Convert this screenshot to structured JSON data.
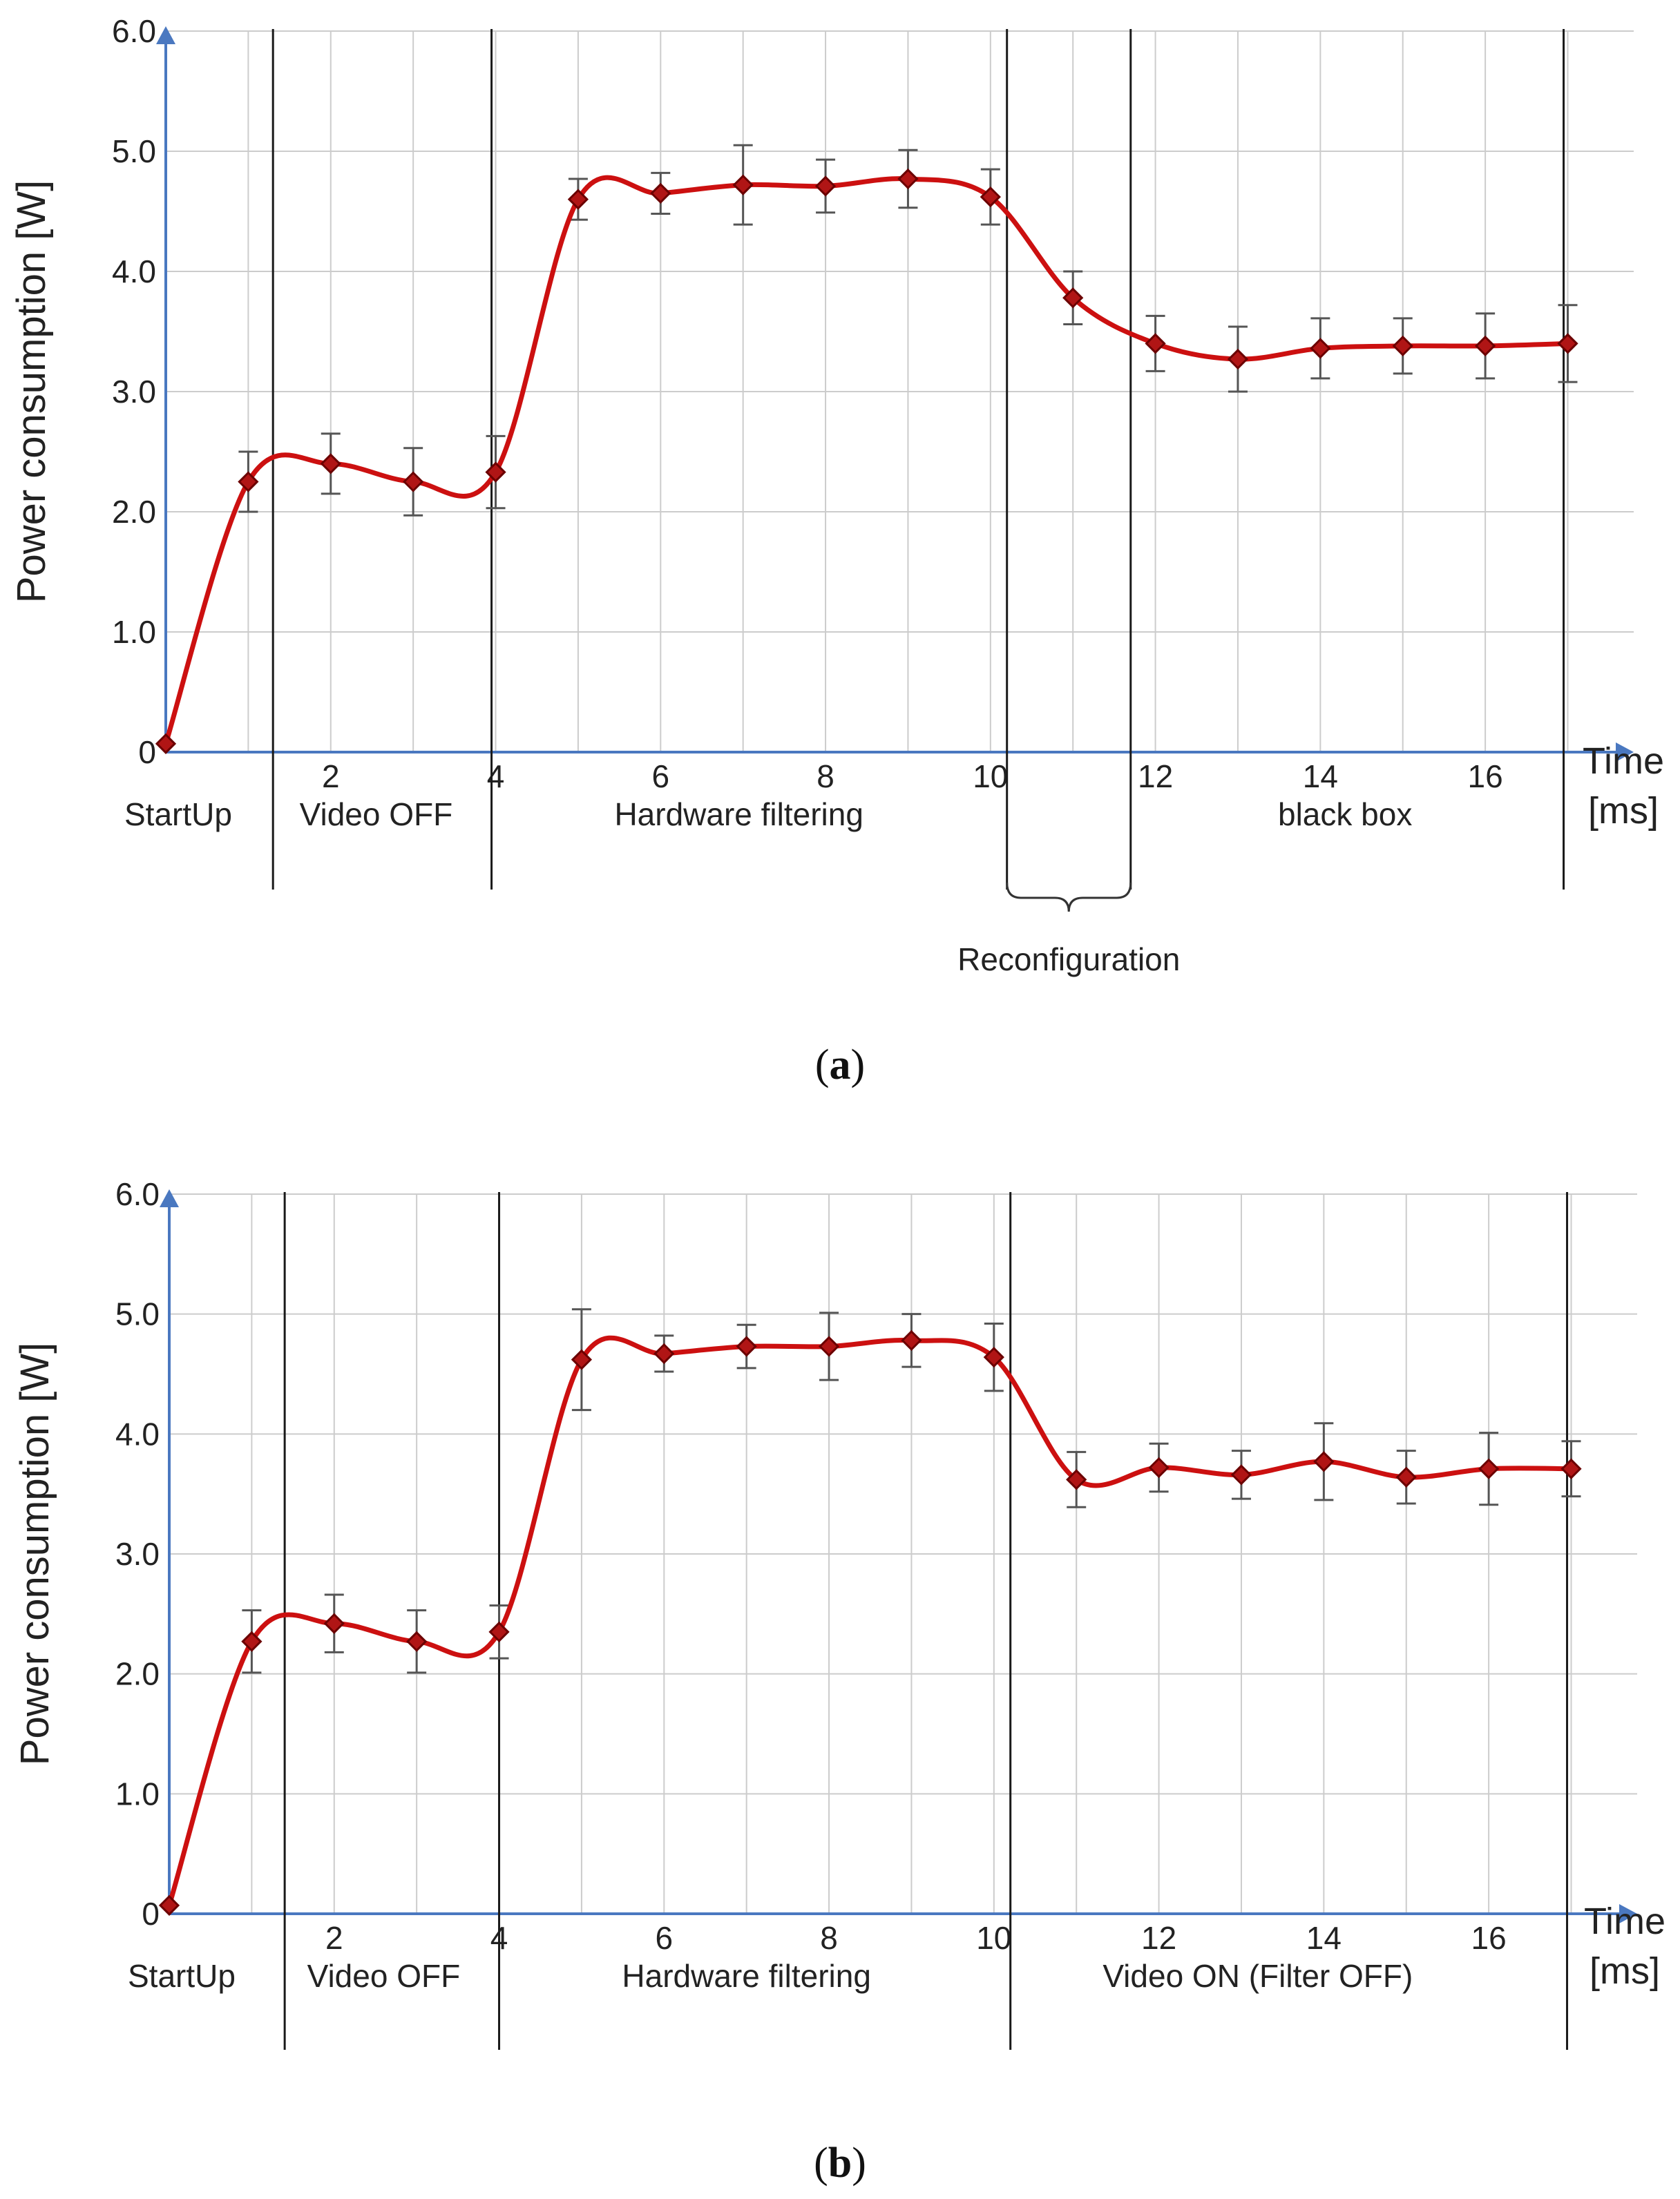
{
  "colors": {
    "axis": "#4a78c0",
    "grid": "#cccccc",
    "curve": "#cc1010",
    "marker": "#b01515",
    "divider": "#1a1a1a"
  },
  "chart_data": [
    {
      "id": "a",
      "type": "line",
      "caption": "a",
      "ylabel": "Power consumption [W]",
      "xlabel_line1": "Time",
      "xlabel_line2": "[ms]",
      "ylim": [
        0,
        6
      ],
      "xlim": [
        0,
        17.8
      ],
      "x_ticks": [
        {
          "value": 2,
          "label": "2"
        },
        {
          "value": 4,
          "label": "4"
        },
        {
          "value": 6,
          "label": "6"
        },
        {
          "value": 8,
          "label": "8"
        },
        {
          "value": 10,
          "label": "10"
        },
        {
          "value": 12,
          "label": "12"
        },
        {
          "value": 14,
          "label": "14"
        },
        {
          "value": 16,
          "label": "16"
        }
      ],
      "y_ticks": [
        {
          "value": 0,
          "label": "0"
        },
        {
          "value": 1,
          "label": "1.0"
        },
        {
          "value": 2,
          "label": "2.0"
        },
        {
          "value": 3,
          "label": "3.0"
        },
        {
          "value": 4,
          "label": "4.0"
        },
        {
          "value": 5,
          "label": "5.0"
        },
        {
          "value": 6,
          "label": "6.0"
        }
      ],
      "series": [
        {
          "name": "Power consumption",
          "x": [
            0,
            1,
            2,
            3,
            4,
            5,
            6,
            7,
            8,
            9,
            10,
            11,
            12,
            13,
            14,
            15,
            16,
            17
          ],
          "y": [
            0.07,
            2.25,
            2.4,
            2.25,
            2.33,
            4.6,
            4.65,
            4.72,
            4.71,
            4.77,
            4.62,
            3.78,
            3.4,
            3.27,
            3.36,
            3.38,
            3.38,
            3.4
          ],
          "err": [
            0,
            0.25,
            0.25,
            0.28,
            0.3,
            0.17,
            0.17,
            0.33,
            0.22,
            0.24,
            0.23,
            0.22,
            0.23,
            0.27,
            0.25,
            0.23,
            0.27,
            0.32
          ]
        }
      ],
      "dividers": [
        1.3,
        3.95,
        10.2,
        11.7,
        16.95
      ],
      "phases": [
        {
          "label": "StartUp",
          "x": 0.25
        },
        {
          "label": "Video OFF",
          "x": 2.55
        },
        {
          "label": "Hardware filtering",
          "x": 6.95
        },
        {
          "label": "black box",
          "x": 14.3
        }
      ],
      "annotation": {
        "label": "Reconfiguration",
        "from": 10.2,
        "to": 11.7
      }
    },
    {
      "id": "b",
      "type": "line",
      "caption": "b",
      "ylabel": "Power consumption [W]",
      "xlabel_line1": "Time",
      "xlabel_line2": "[ms]",
      "ylim": [
        0,
        6
      ],
      "xlim": [
        0,
        17.8
      ],
      "x_ticks": [
        {
          "value": 2,
          "label": "2"
        },
        {
          "value": 4,
          "label": "4"
        },
        {
          "value": 6,
          "label": "6"
        },
        {
          "value": 8,
          "label": "8"
        },
        {
          "value": 10,
          "label": "10"
        },
        {
          "value": 12,
          "label": "12"
        },
        {
          "value": 14,
          "label": "14"
        },
        {
          "value": 16,
          "label": "16"
        }
      ],
      "y_ticks": [
        {
          "value": 0,
          "label": "0"
        },
        {
          "value": 1,
          "label": "1.0"
        },
        {
          "value": 2,
          "label": "2.0"
        },
        {
          "value": 3,
          "label": "3.0"
        },
        {
          "value": 4,
          "label": "4.0"
        },
        {
          "value": 5,
          "label": "5.0"
        },
        {
          "value": 6,
          "label": "6.0"
        }
      ],
      "series": [
        {
          "name": "Power consumption",
          "x": [
            0,
            1,
            2,
            3,
            4,
            5,
            6,
            7,
            8,
            9,
            10,
            11,
            12,
            13,
            14,
            15,
            16,
            17
          ],
          "y": [
            0.07,
            2.27,
            2.42,
            2.27,
            2.35,
            4.62,
            4.67,
            4.73,
            4.73,
            4.78,
            4.64,
            3.62,
            3.72,
            3.66,
            3.77,
            3.64,
            3.71,
            3.71
          ],
          "err": [
            0,
            0.26,
            0.24,
            0.26,
            0.22,
            0.42,
            0.15,
            0.18,
            0.28,
            0.22,
            0.28,
            0.23,
            0.2,
            0.2,
            0.32,
            0.22,
            0.3,
            0.23
          ]
        }
      ],
      "dividers": [
        1.4,
        4.0,
        10.2,
        16.95
      ],
      "phases": [
        {
          "label": "StartUp",
          "x": 0.3
        },
        {
          "label": "Video OFF",
          "x": 2.6
        },
        {
          "label": "Hardware filtering",
          "x": 7.0
        },
        {
          "label": "Video ON (Filter OFF)",
          "x": 13.2
        }
      ]
    }
  ]
}
